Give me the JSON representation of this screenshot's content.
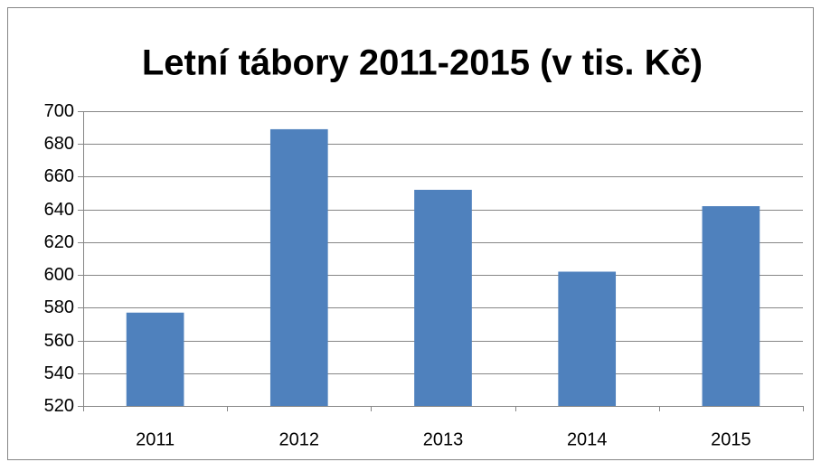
{
  "chart_data": {
    "type": "bar",
    "title": "Letní tábory 2011-2015 (v tis. Kč)",
    "categories": [
      "2011",
      "2012",
      "2013",
      "2014",
      "2015"
    ],
    "values": [
      577,
      689,
      652,
      602,
      642
    ],
    "color": "#4f81bd",
    "ylim": [
      520,
      700
    ],
    "yticks": [
      520,
      540,
      560,
      580,
      600,
      620,
      640,
      660,
      680,
      700
    ],
    "grid": true
  }
}
